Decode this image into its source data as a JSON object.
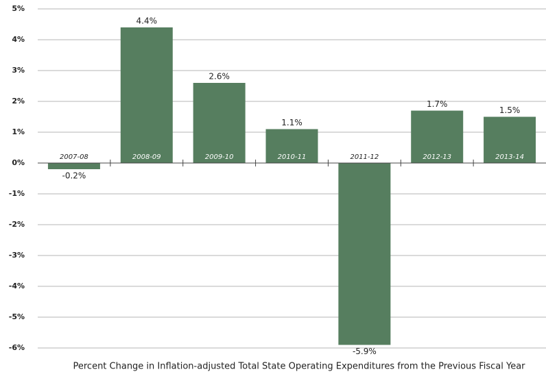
{
  "chart_data": {
    "type": "bar",
    "title": "Percent Change in Inflation-adjusted Total State Operating Expenditures from the Previous Fiscal Year",
    "categories": [
      "2007-08",
      "2008-09",
      "2009-10",
      "2010-11",
      "2011-12",
      "2012-13",
      "2013-14"
    ],
    "values": [
      -0.2,
      4.4,
      2.6,
      1.1,
      -5.9,
      1.7,
      1.5
    ],
    "value_labels": [
      "-0.2%",
      "4.4%",
      "2.6%",
      "1.1%",
      "-5.9%",
      "1.7%",
      "1.5%"
    ],
    "color": "#567e5f",
    "ylim": [
      -6,
      5
    ],
    "yticks": [
      {
        "value": -6,
        "label": "-6%"
      },
      {
        "value": -5,
        "label": "-5%"
      },
      {
        "value": -4,
        "label": "-4%"
      },
      {
        "value": -3,
        "label": "-3%"
      },
      {
        "value": -2,
        "label": "-2%"
      },
      {
        "value": -1,
        "label": "-1%"
      },
      {
        "value": 0,
        "label": "0%"
      },
      {
        "value": 1,
        "label": "1%"
      },
      {
        "value": 2,
        "label": "2%"
      },
      {
        "value": 3,
        "label": "3%"
      },
      {
        "value": 4,
        "label": "4%"
      },
      {
        "value": 5,
        "label": "5%"
      }
    ],
    "grid": true
  }
}
